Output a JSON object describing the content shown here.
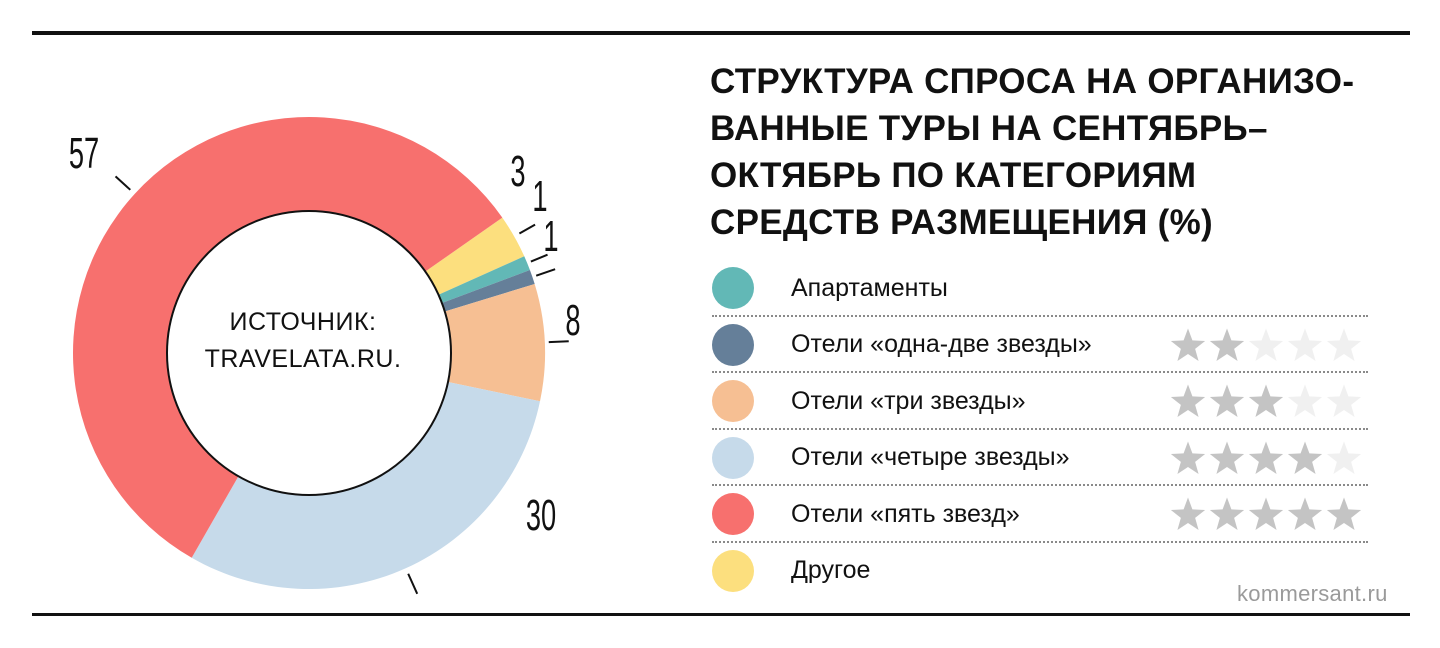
{
  "title_lines": [
    "СТРУКТУРА СПРОСА НА ОРГАНИЗО-",
    "ВАННЫЕ ТУРЫ НА СЕНТЯБРЬ–",
    "ОКТЯБРЬ ПО КАТЕГОРИЯМ",
    "СРЕДСТВ РАЗМЕЩЕНИЯ (%)"
  ],
  "center_text": [
    "ИСТОЧНИК:",
    "TRAVELATA.RU."
  ],
  "footer_site": "kommersant.ru",
  "chart_data": {
    "type": "pie",
    "variant": "donut",
    "title": "СТРУКТУРА СПРОСА НА ОРГАНИЗОВАННЫЕ ТУРЫ НА СЕНТЯБРЬ–ОКТЯБРЬ ПО КАТЕГОРИЯМ СРЕДСТВ РАЗМЕЩЕНИЯ (%)",
    "slices": [
      {
        "label": "Другое",
        "value": 3,
        "value_label": "3",
        "color": "#FCDF7E"
      },
      {
        "label": "Апартаменты",
        "value": 1,
        "value_label": "1",
        "color": "#62B8B6"
      },
      {
        "label": "Отели «одна-две звезды»",
        "value": 1,
        "value_label": "1",
        "color": "#657F99"
      },
      {
        "label": "Отели «три звезды»",
        "value": 8,
        "value_label": "8",
        "color": "#F6BF93"
      },
      {
        "label": "Отели «четыре звезды»",
        "value": 30,
        "value_label": "30",
        "color": "#C6DAEA"
      },
      {
        "label": "Отели «пять звезд»",
        "value": 57,
        "value_label": "57",
        "color": "#F7706E"
      }
    ],
    "legend_order": [
      {
        "label": "Апартаменты",
        "color": "#62B8B6",
        "stars": 0
      },
      {
        "label": "Отели «одна-две звезды»",
        "color": "#657F99",
        "stars": 2
      },
      {
        "label": "Отели «три звезды»",
        "color": "#F6BF93",
        "stars": 3
      },
      {
        "label": "Отели «четыре звезды»",
        "color": "#C6DAEA",
        "stars": 4
      },
      {
        "label": "Отели «пять звезд»",
        "color": "#F7706E",
        "stars": 5
      },
      {
        "label": "Другое",
        "color": "#FCDF7E",
        "stars": 0
      }
    ],
    "legend_placement": "right",
    "unit": "%"
  },
  "colors": {
    "star_filled": "#C4C4C4",
    "star_empty": "#F0F0F0",
    "rule": "#111111",
    "footer": "#9A9A9A"
  }
}
